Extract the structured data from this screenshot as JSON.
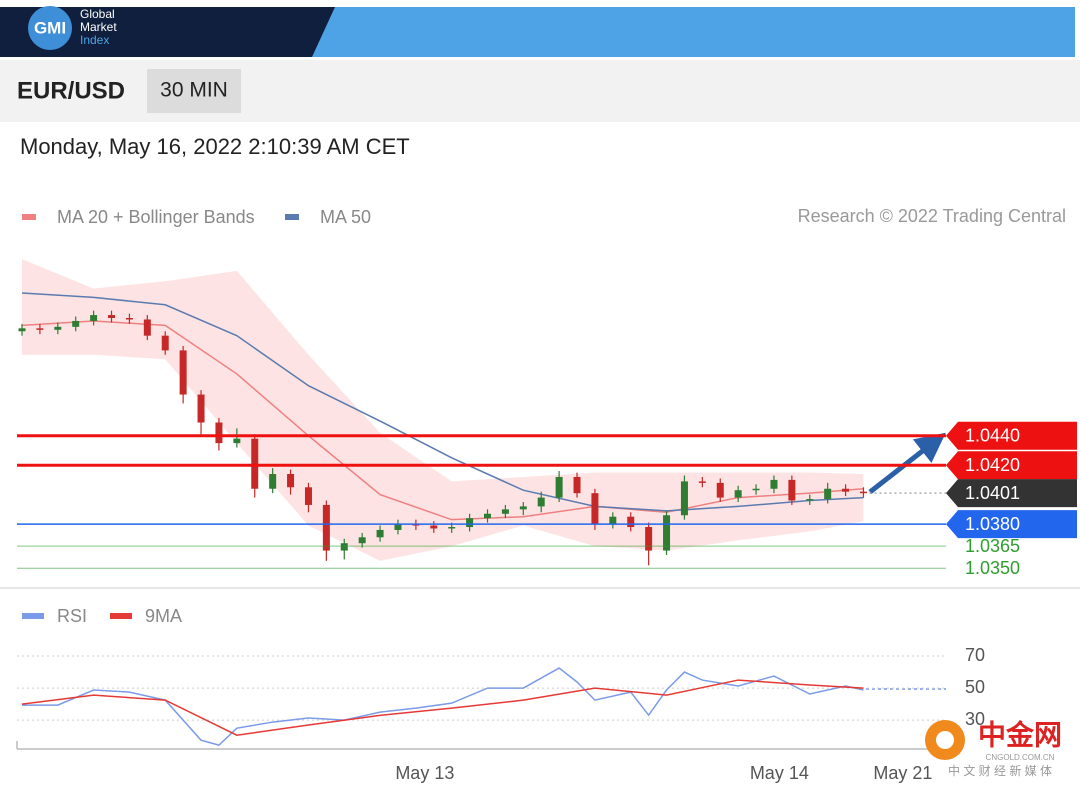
{
  "header": {
    "logo": "GMI",
    "brand": [
      "Global",
      "Market",
      "Index"
    ]
  },
  "instrument": "EUR/USD",
  "timeframe": "30 MIN",
  "timestamp": "Monday, May 16, 2022 2:10:39 AM CET",
  "credit": "Research © 2022 Trading Central",
  "watermark": {
    "title": "中金网",
    "url": "CNGOLD.COM.CN",
    "slogan": "中 文 财 经 新 媒 体"
  },
  "chart_data": [
    {
      "type": "candlestick",
      "xlim": [
        0,
        52
      ],
      "ylim": [
        1.0342,
        1.0573
      ],
      "up_color": "#2e7d32",
      "down_color": "#c62828",
      "candles": [
        [
          1.0511,
          1.0516,
          1.0508,
          1.0513
        ],
        [
          1.0513,
          1.0516,
          1.0509,
          1.0512
        ],
        [
          1.0512,
          1.0517,
          1.0509,
          1.0514
        ],
        [
          1.0514,
          1.0521,
          1.0511,
          1.0518
        ],
        [
          1.0518,
          1.0525,
          1.0515,
          1.0522
        ],
        [
          1.0522,
          1.0525,
          1.0517,
          1.052
        ],
        [
          1.052,
          1.0523,
          1.0516,
          1.0519
        ],
        [
          1.0519,
          1.0522,
          1.0505,
          1.0508
        ],
        [
          1.0508,
          1.0511,
          1.0495,
          1.0498
        ],
        [
          1.0498,
          1.0501,
          1.0462,
          1.0468
        ],
        [
          1.0468,
          1.0471,
          1.044,
          1.0449
        ],
        [
          1.0449,
          1.0452,
          1.043,
          1.0435
        ],
        [
          1.0435,
          1.0445,
          1.0432,
          1.0438
        ],
        [
          1.0438,
          1.0441,
          1.0398,
          1.0404
        ],
        [
          1.0404,
          1.0418,
          1.0401,
          1.0414
        ],
        [
          1.0414,
          1.0417,
          1.04,
          1.0405
        ],
        [
          1.0405,
          1.0408,
          1.0388,
          1.0393
        ],
        [
          1.0393,
          1.0396,
          1.0355,
          1.0362
        ],
        [
          1.0362,
          1.037,
          1.0356,
          1.0367
        ],
        [
          1.0367,
          1.0374,
          1.0364,
          1.0371
        ],
        [
          1.0371,
          1.0379,
          1.0368,
          1.0376
        ],
        [
          1.0376,
          1.0383,
          1.0373,
          1.038
        ],
        [
          1.038,
          1.0383,
          1.0376,
          1.0379
        ],
        [
          1.0379,
          1.0382,
          1.0374,
          1.0377
        ],
        [
          1.0377,
          1.0381,
          1.0374,
          1.0378
        ],
        [
          1.0378,
          1.0387,
          1.0375,
          1.0384
        ],
        [
          1.0384,
          1.039,
          1.0381,
          1.0387
        ],
        [
          1.0387,
          1.0393,
          1.0384,
          1.039
        ],
        [
          1.039,
          1.0395,
          1.0386,
          1.0392
        ],
        [
          1.0392,
          1.0402,
          1.0388,
          1.0398
        ],
        [
          1.0398,
          1.0416,
          1.0395,
          1.0412
        ],
        [
          1.0412,
          1.0415,
          1.0398,
          1.0401
        ],
        [
          1.0401,
          1.0404,
          1.0376,
          1.038
        ],
        [
          1.038,
          1.0388,
          1.0377,
          1.0385
        ],
        [
          1.0385,
          1.0388,
          1.0375,
          1.0378
        ],
        [
          1.0378,
          1.0381,
          1.0352,
          1.0362
        ],
        [
          1.0362,
          1.0389,
          1.0359,
          1.0386
        ],
        [
          1.0386,
          1.0413,
          1.0383,
          1.0409
        ],
        [
          1.0409,
          1.0412,
          1.0405,
          1.0408
        ],
        [
          1.0408,
          1.0411,
          1.0395,
          1.0398
        ],
        [
          1.0398,
          1.0406,
          1.0395,
          1.0403
        ],
        [
          1.0403,
          1.0407,
          1.04,
          1.0404
        ],
        [
          1.0404,
          1.0413,
          1.0401,
          1.041
        ],
        [
          1.041,
          1.0413,
          1.0393,
          1.0396
        ],
        [
          1.0396,
          1.04,
          1.0393,
          1.0397
        ],
        [
          1.0397,
          1.0408,
          1.0394,
          1.0404
        ],
        [
          1.0404,
          1.0407,
          1.0399,
          1.0402
        ],
        [
          1.0402,
          1.0405,
          1.0398,
          1.0401
        ]
      ],
      "x": [
        0,
        4,
        8,
        12,
        16,
        20,
        24,
        28,
        32,
        36,
        40,
        44,
        47
      ],
      "series": [
        {
          "name": "MA 20 + Bollinger Bands",
          "color": "#f08080",
          "band_color": "#fde3e3",
          "values": [
            1.0515,
            1.0518,
            1.0515,
            1.0482,
            1.044,
            1.04,
            1.0383,
            1.0385,
            1.0392,
            1.0388,
            1.0398,
            1.0401,
            1.0404
          ],
          "upper": [
            1.056,
            1.054,
            1.0545,
            1.0552,
            1.0495,
            1.0442,
            1.0409,
            1.0412,
            1.0415,
            1.0415,
            1.0415,
            1.0415,
            1.0414
          ],
          "lower": [
            1.0495,
            1.0495,
            1.0492,
            1.0435,
            1.0379,
            1.0355,
            1.0365,
            1.0379,
            1.0365,
            1.0362,
            1.0369,
            1.0375,
            1.0382
          ]
        },
        {
          "name": "MA 50",
          "color": "#5b7bb0",
          "values": [
            1.0537,
            1.0534,
            1.0529,
            1.0508,
            1.0474,
            1.045,
            1.0425,
            1.0403,
            1.0392,
            1.0389,
            1.0392,
            1.0396,
            1.0398
          ]
        }
      ],
      "levels": [
        {
          "value": 1.044,
          "label": "1.0440",
          "color": "#ee1111",
          "style": "bold",
          "box": true
        },
        {
          "value": 1.042,
          "label": "1.0420",
          "color": "#ee1111",
          "style": "bold",
          "box": true
        },
        {
          "value": 1.0401,
          "color": "#333333",
          "style": "dotted",
          "box": true
        },
        {
          "value": 1.038,
          "label": "1.0380",
          "color": "#2266ee",
          "style": "thin",
          "box": true
        },
        {
          "value": 1.0365,
          "color": "#2e9e2e",
          "style": "faint",
          "box": false
        },
        {
          "value": 1.035,
          "label": "1.0350",
          "color": "#2e9e2e",
          "style": "faint",
          "box": false
        }
      ]
    },
    {
      "type": "line",
      "xlim": [
        0,
        52
      ],
      "ylim": [
        12,
        80
      ],
      "yticks": [
        70,
        50,
        30
      ],
      "grid": true,
      "xticks": [
        {
          "value": 22.5,
          "label": "May 13"
        },
        {
          "value": 42.3,
          "label": "May 14"
        },
        {
          "value": 49.2,
          "label": "May 21"
        }
      ],
      "series": [
        {
          "name": "RSI",
          "color": "#7b9be8",
          "x": [
            0,
            2,
            4,
            6,
            8,
            10,
            11,
            12,
            14,
            16,
            18,
            20,
            22,
            24,
            26,
            28,
            30,
            31,
            32,
            34,
            35,
            36,
            37,
            38,
            40,
            42,
            44,
            46,
            47
          ],
          "values": [
            39.4,
            39.4,
            48.8,
            47.5,
            42.5,
            17.5,
            14.4,
            25,
            28.8,
            31.3,
            30,
            35,
            37.5,
            40.6,
            50,
            50,
            62.5,
            53.8,
            42.5,
            47.5,
            33.1,
            48.8,
            60,
            55,
            51.3,
            57.5,
            46.3,
            51.3,
            48.8
          ]
        },
        {
          "name": "9MA",
          "color": "#e53935",
          "x": [
            0,
            4,
            8,
            12,
            16,
            20,
            24,
            28,
            32,
            36,
            40,
            44,
            47
          ],
          "values": [
            40,
            45.6,
            42.5,
            20.6,
            27,
            33,
            37.5,
            42.5,
            50,
            45.6,
            55,
            51.9,
            50
          ]
        }
      ]
    }
  ]
}
